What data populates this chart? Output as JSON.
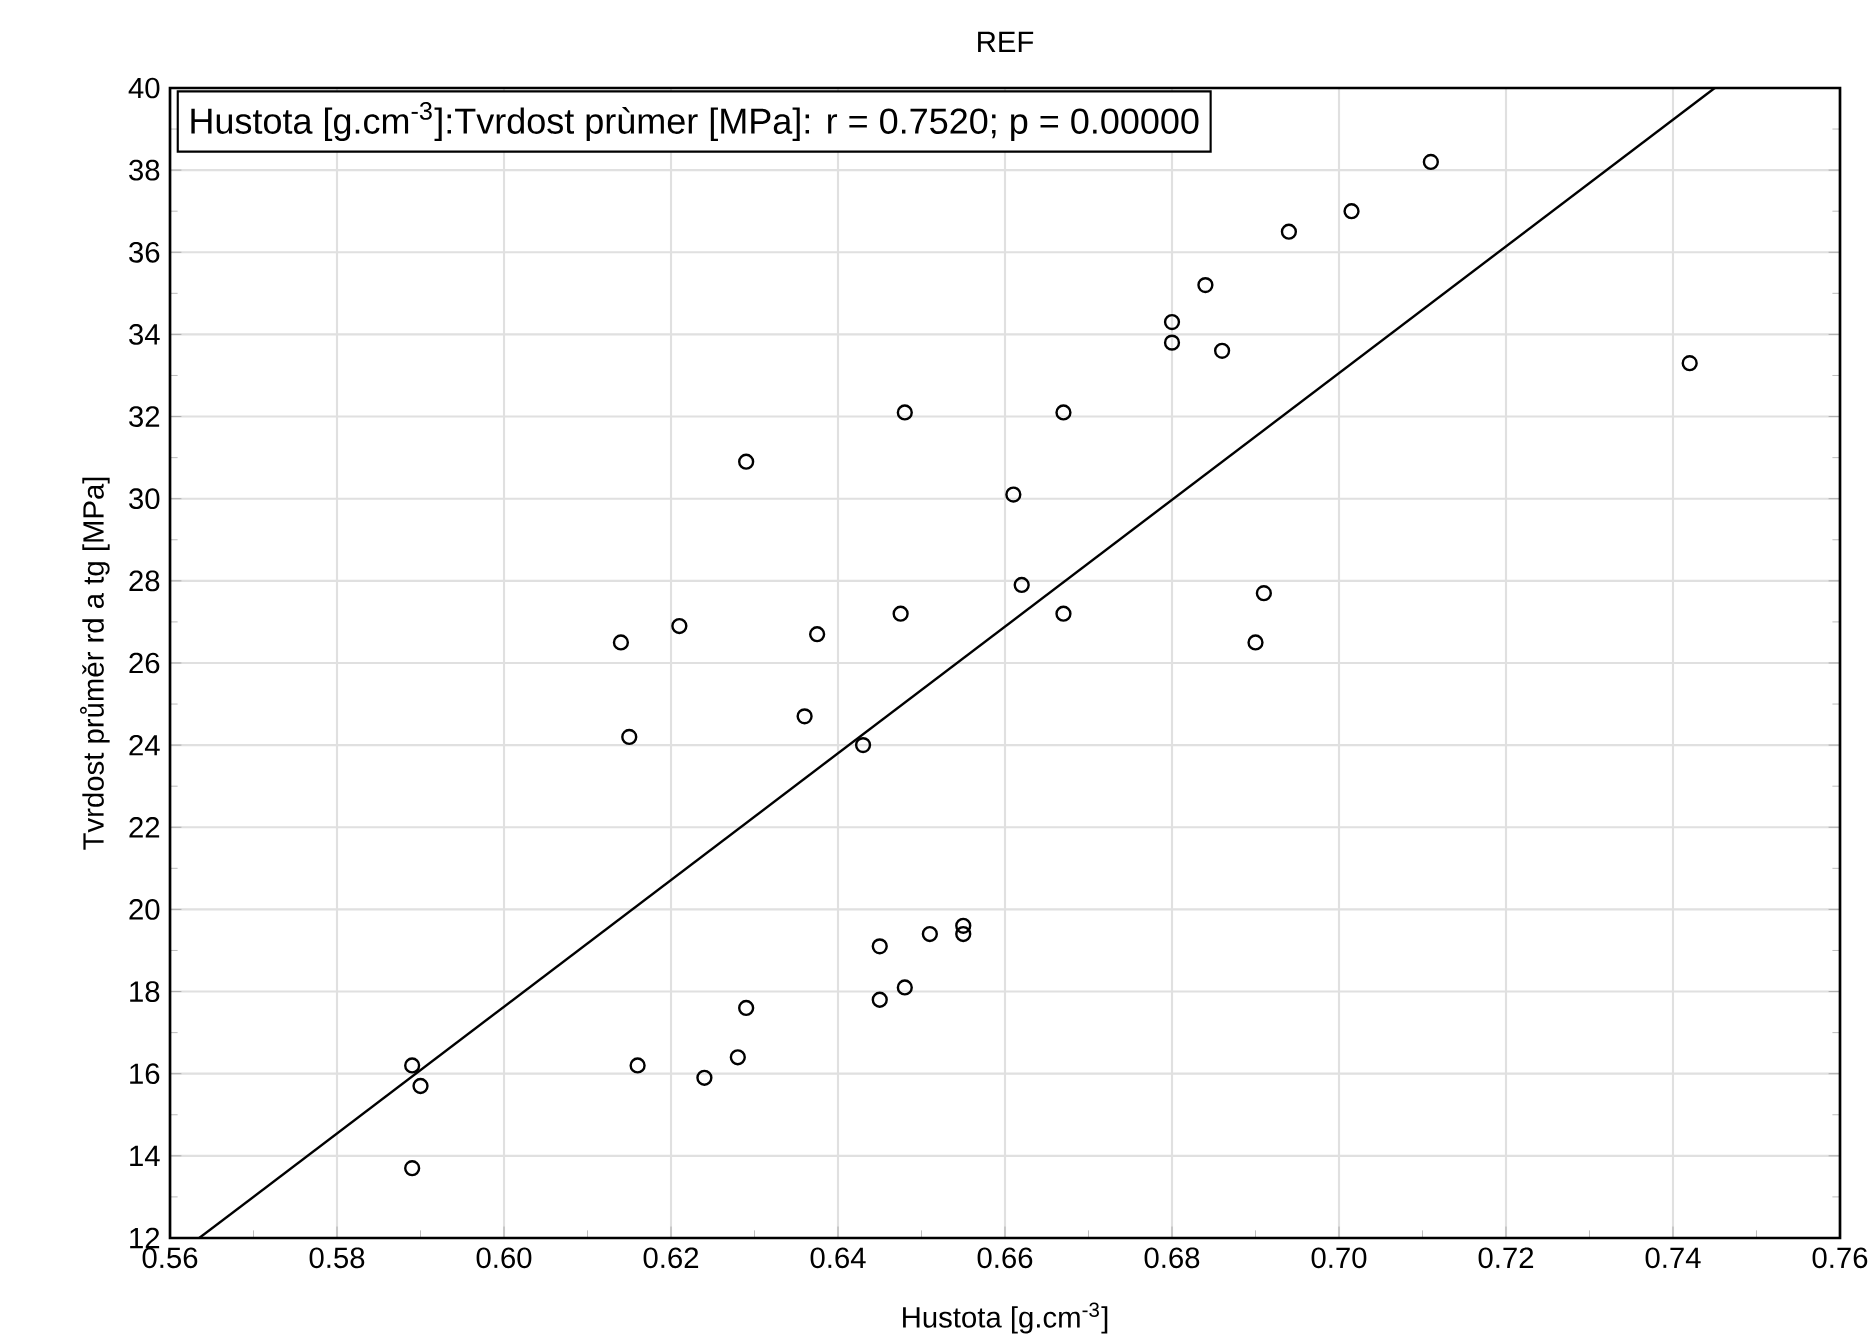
{
  "chart_data": {
    "type": "scatter",
    "title": "REF",
    "xlabel": "Hustota [g.cm$^{-3}$]",
    "ylabel": "Tvrdost průměr rd a tg [MPa]",
    "annotations": [
      "Hustota [g.cm$^{-3}$]:Tvrdost prùmer [MPa]:    r = 0.7520; p = 0.00000"
    ],
    "series": [
      {
        "color": "#000000",
        "marker": "circle",
        "x": [
          0.589,
          0.59,
          0.589,
          0.614,
          0.615,
          0.616,
          0.621,
          0.624,
          0.628,
          0.629,
          0.629,
          0.636,
          0.6375,
          0.643,
          0.645,
          0.645,
          0.6475,
          0.648,
          0.648,
          0.651,
          0.655,
          0.655,
          0.661,
          0.662,
          0.667,
          0.667,
          0.68,
          0.68,
          0.684,
          0.686,
          0.69,
          0.691,
          0.694,
          0.7015,
          0.711,
          0.742
        ],
        "values": [
          16.2,
          15.7,
          13.7,
          26.5,
          24.2,
          16.2,
          26.9,
          15.9,
          16.4,
          17.6,
          30.9,
          24.7,
          26.7,
          24.0,
          19.1,
          17.8,
          27.2,
          32.1,
          18.1,
          19.4,
          19.4,
          19.6,
          30.1,
          27.9,
          27.2,
          32.1,
          34.3,
          33.8,
          35.2,
          33.6,
          26.5,
          27.7,
          36.5,
          37.0,
          38.2,
          33.3
        ]
      },
      {
        "type": "line",
        "color": "#000000",
        "marker": "none",
        "line_style": "solid",
        "x": [
          0.5635,
          0.745
        ],
        "values": [
          12,
          40
        ]
      }
    ],
    "xlim": [
      0.56,
      0.76
    ],
    "xticks": [
      {
        "value": 0.56,
        "label": "0.56"
      },
      {
        "value": 0.58,
        "label": "0.58"
      },
      {
        "value": 0.6,
        "label": "0.60"
      },
      {
        "value": 0.62,
        "label": "0.62"
      },
      {
        "value": 0.64,
        "label": "0.64"
      },
      {
        "value": 0.66,
        "label": "0.66"
      },
      {
        "value": 0.68,
        "label": "0.68"
      },
      {
        "value": 0.7,
        "label": "0.70"
      },
      {
        "value": 0.72,
        "label": "0.72"
      },
      {
        "value": 0.74,
        "label": "0.74"
      },
      {
        "value": 0.76,
        "label": "0.76"
      }
    ],
    "ylim": [
      12,
      40
    ],
    "yticks": [
      12,
      14,
      16,
      18,
      20,
      22,
      24,
      26,
      28,
      30,
      32,
      34,
      36,
      38,
      40
    ],
    "grid": true
  }
}
